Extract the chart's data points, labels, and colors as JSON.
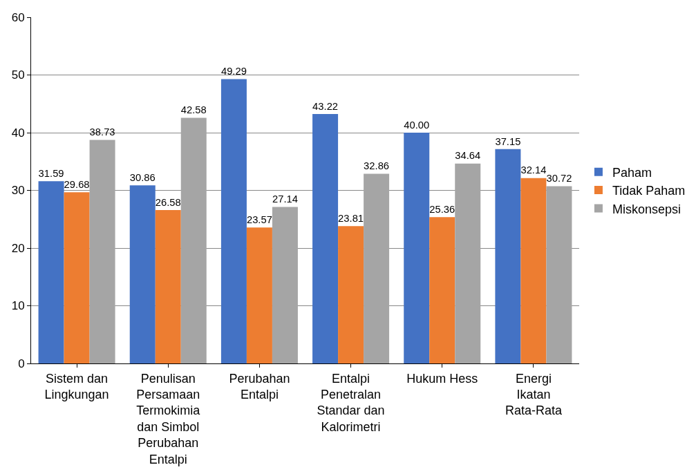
{
  "chart_data": {
    "type": "bar",
    "categories": [
      "Sistem dan Lingkungan",
      "Penulisan Persamaan Termokimia dan Simbol Perubahan Entalpi",
      "Perubahan Entalpi",
      "Entalpi Penetralan Standar dan Kalorimetri",
      "Hukum Hess",
      "Energi Ikatan Rata-Rata"
    ],
    "series": [
      {
        "name": "Paham",
        "color": "#4472c4",
        "values": [
          31.59,
          30.86,
          49.29,
          43.22,
          40.0,
          37.15
        ],
        "value_labels": [
          "31.59",
          "30.86",
          "49.29",
          "43.22",
          "40.00",
          "37.15"
        ]
      },
      {
        "name": "Tidak Paham",
        "color": "#ed7d31",
        "values": [
          29.68,
          26.58,
          23.57,
          23.81,
          25.36,
          32.14
        ],
        "value_labels": [
          "29.68",
          "26.58",
          "23.57",
          "23.81",
          "25.36",
          "32.14"
        ]
      },
      {
        "name": "Miskonsepsi",
        "color": "#a5a5a5",
        "values": [
          38.73,
          42.58,
          27.14,
          32.86,
          34.64,
          30.72
        ],
        "value_labels": [
          "38.73",
          "42.58",
          "27.14",
          "32.86",
          "34.64",
          "30.72"
        ]
      }
    ],
    "ylim": [
      0,
      60
    ],
    "yticks": [
      0,
      10,
      20,
      30,
      40,
      50,
      60
    ],
    "grid": "y",
    "legend": "right"
  }
}
